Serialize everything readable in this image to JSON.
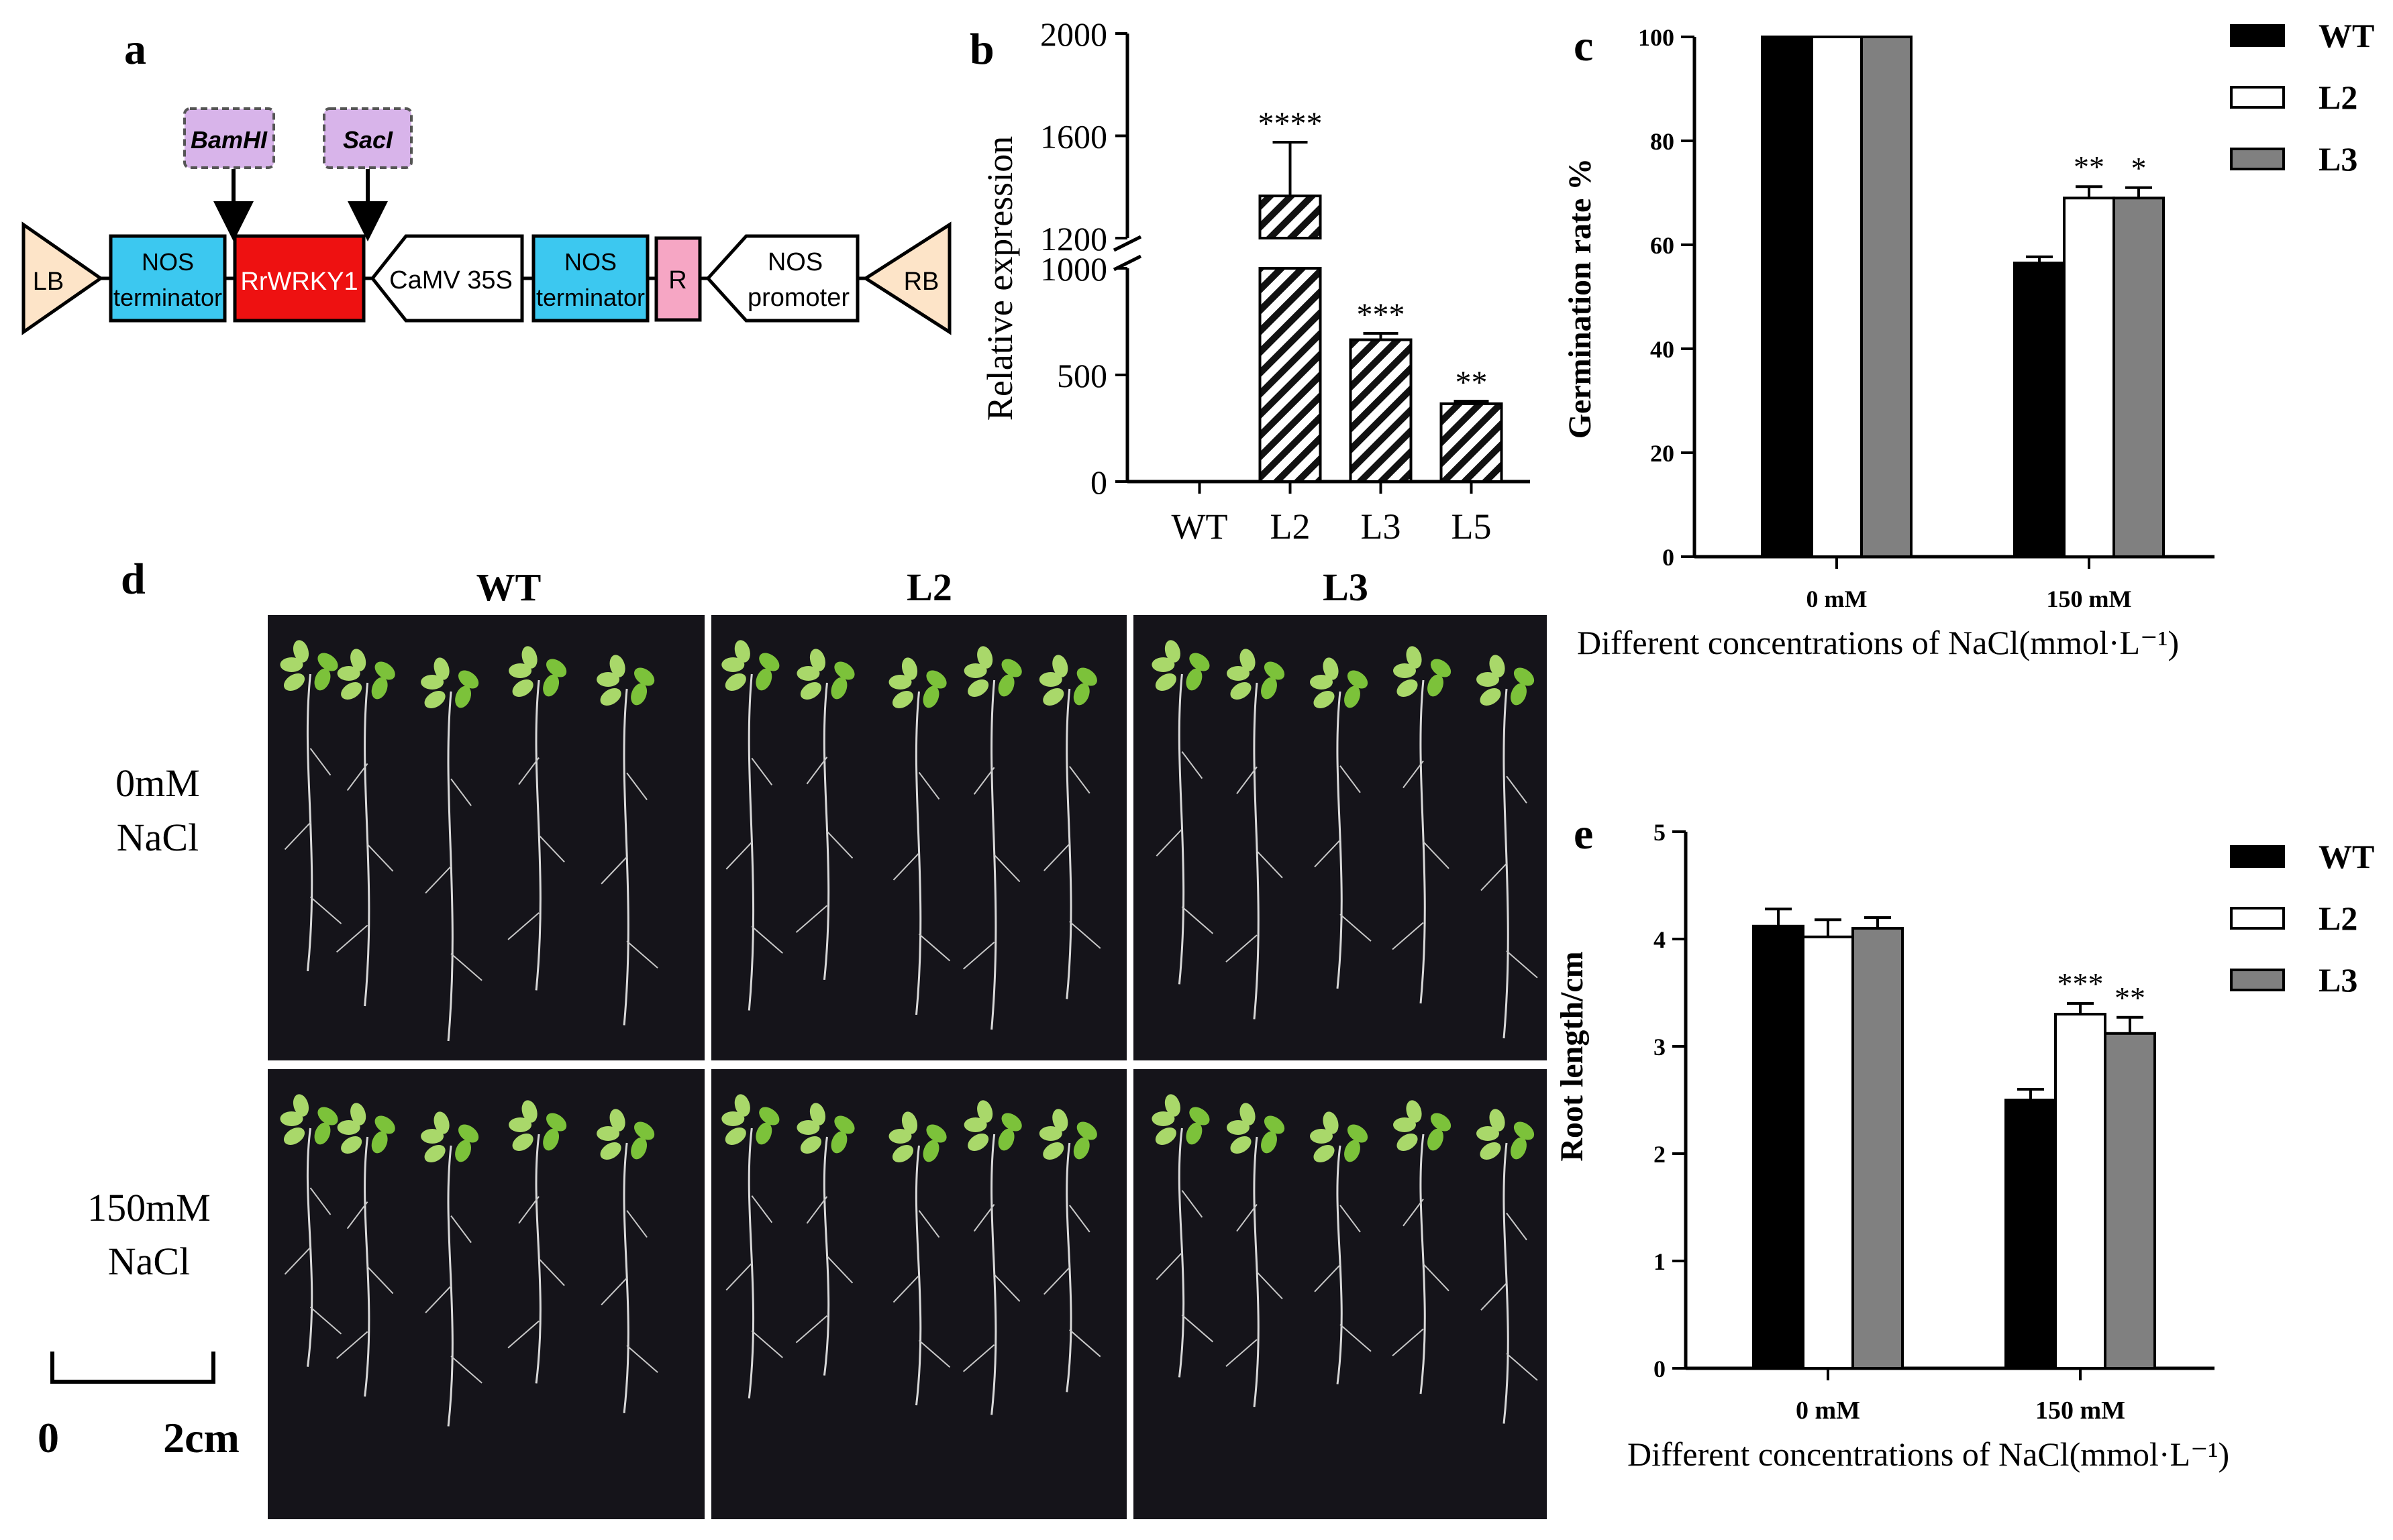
{
  "panel_letters": {
    "a": "a",
    "b": "b",
    "c": "c",
    "d": "d",
    "e": "e"
  },
  "construct": {
    "sites": [
      "BamHI",
      "SacI"
    ],
    "elements": [
      {
        "id": "lb",
        "label": "LB",
        "color": "#fde4c8"
      },
      {
        "id": "nos-term-1",
        "line1": "NOS",
        "line2": "terminator",
        "color": "#3cc8f0"
      },
      {
        "id": "rrwrky1",
        "label": "RrWRKY1",
        "color": "#ee1111"
      },
      {
        "id": "camv35s",
        "label": "CaMV 35S",
        "color": "#ffffff"
      },
      {
        "id": "nos-term-2",
        "line1": "NOS",
        "line2": "terminator",
        "color": "#3cc8f0"
      },
      {
        "id": "r",
        "label": "R",
        "color": "#f6a6c4"
      },
      {
        "id": "nos-promoter",
        "line1": "NOS",
        "line2": "promoter",
        "color": "#ffffff"
      },
      {
        "id": "rb",
        "label": "RB",
        "color": "#fde4c8"
      }
    ],
    "site_color": "#d8b4ea"
  },
  "chart_data": [
    {
      "panel": "b",
      "type": "bar",
      "categories": [
        "WT",
        "L2",
        "L3",
        "L5"
      ],
      "values": [
        1,
        1365,
        665,
        365
      ],
      "errors": [
        0,
        210,
        30,
        12
      ],
      "significance": [
        "",
        "****",
        "***",
        "**"
      ],
      "ylabel": "Relative expression",
      "yticks": [
        0,
        500,
        1000,
        1200,
        1600,
        2000
      ],
      "axis_break": [
        1000,
        1200
      ],
      "ylim": [
        0,
        2000
      ],
      "hatch": true
    },
    {
      "panel": "c",
      "type": "bar",
      "categories": [
        "0 mM",
        "150 mM"
      ],
      "series": [
        {
          "name": "WT",
          "values": [
            100,
            56.5
          ],
          "errors": [
            0,
            1.2
          ],
          "sig": [
            "",
            ""
          ],
          "color": "#000000"
        },
        {
          "name": "L2",
          "values": [
            100,
            69
          ],
          "errors": [
            0,
            2.2
          ],
          "sig": [
            "",
            "**"
          ],
          "color": "#ffffff"
        },
        {
          "name": "L3",
          "values": [
            100,
            69
          ],
          "errors": [
            0,
            2.0
          ],
          "sig": [
            "",
            "*"
          ],
          "color": "#808080"
        }
      ],
      "ylabel": "Germination rate %",
      "xlabel": "Different concentrations of NaCl(mmol·L⁻¹)",
      "ylim": [
        0,
        100
      ],
      "yticks": [
        0,
        20,
        40,
        60,
        80,
        100
      ],
      "legend": "right"
    },
    {
      "panel": "e",
      "type": "bar",
      "categories": [
        "0 mM",
        "150 mM"
      ],
      "series": [
        {
          "name": "WT",
          "values": [
            4.12,
            2.5
          ],
          "errors": [
            0.16,
            0.1
          ],
          "sig": [
            "",
            ""
          ],
          "color": "#000000"
        },
        {
          "name": "L2",
          "values": [
            4.02,
            3.3
          ],
          "errors": [
            0.16,
            0.1
          ],
          "sig": [
            "",
            "***"
          ],
          "color": "#ffffff"
        },
        {
          "name": "L3",
          "values": [
            4.1,
            3.12
          ],
          "errors": [
            0.1,
            0.15
          ],
          "sig": [
            "",
            "**"
          ],
          "color": "#808080"
        }
      ],
      "ylabel": "Root length/cm",
      "xlabel": "Different concentrations of NaCl(mmol·L⁻¹)",
      "ylim": [
        0,
        5
      ],
      "yticks": [
        0,
        1,
        2,
        3,
        4,
        5
      ],
      "legend": "right"
    }
  ],
  "photo_panel": {
    "columns": [
      "WT",
      "L2",
      "L3"
    ],
    "rows": [
      {
        "line1": "0mM",
        "line2": "NaCl"
      },
      {
        "line1": "150mM",
        "line2": "NaCl"
      }
    ],
    "scale_start": "0",
    "scale_end": "2cm"
  }
}
